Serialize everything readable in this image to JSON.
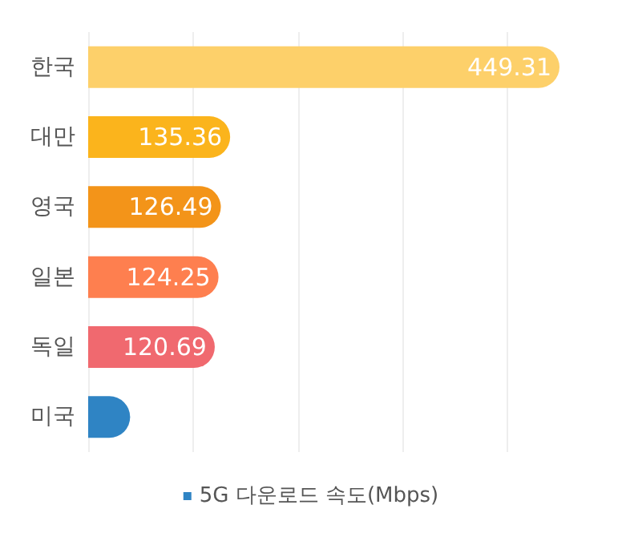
{
  "chart_data": {
    "type": "bar",
    "orientation": "horizontal",
    "categories": [
      "한국",
      "대만",
      "영국",
      "일본",
      "독일",
      "미국"
    ],
    "series": [
      {
        "name": "5G 다운로드 속도(Mbps)",
        "color": "#2f84c4",
        "values": [
          449.31,
          135.36,
          126.49,
          124.25,
          120.69,
          40
        ],
        "colors": [
          "#fdd06a",
          "#fbb41c",
          "#f39419",
          "#fe7f4f",
          "#f0696f",
          "#2f84c4"
        ],
        "value_labels": [
          "449.31",
          "135.36",
          "126.49",
          "124.25",
          "120.69",
          null
        ]
      }
    ],
    "xticks": [
      {
        "value": 0,
        "label": null
      },
      {
        "value": 100,
        "label": null
      },
      {
        "value": 200,
        "label": null
      },
      {
        "value": 300,
        "label": null
      },
      {
        "value": 400,
        "label": null
      }
    ],
    "grid": "x",
    "legend": "bottom",
    "tick_labels": "y"
  }
}
